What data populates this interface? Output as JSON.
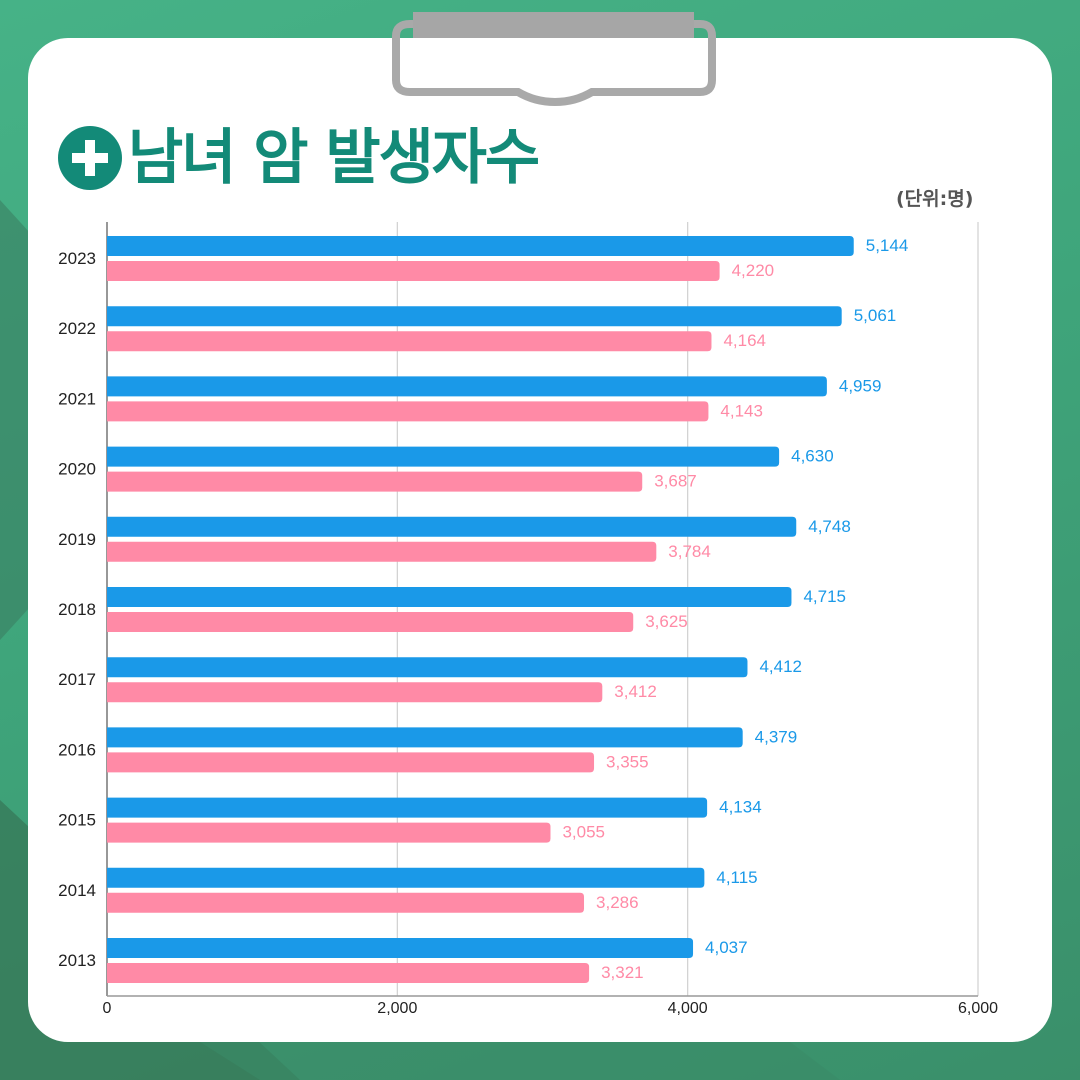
{
  "title": "남녀 암 발생자수",
  "unit": "(단위:명)",
  "colors": {
    "background": "#43ad80",
    "title": "#138a78",
    "male": "#1a99e8",
    "female": "#ff8aa6"
  },
  "icons": {
    "title_icon": "plus-circle-icon",
    "decoration": "clipboard-clip-icon"
  },
  "chart_data": {
    "type": "bar",
    "orientation": "horizontal",
    "categories": [
      "2023",
      "2022",
      "2021",
      "2020",
      "2019",
      "2018",
      "2017",
      "2016",
      "2015",
      "2014",
      "2013"
    ],
    "series": [
      {
        "color": "#1a99e8",
        "values": [
          5144,
          5061,
          4959,
          4630,
          4748,
          4715,
          4412,
          4379,
          4134,
          4115,
          4037
        ],
        "labels": [
          "5,144",
          "5,061",
          "4,959",
          "4,630",
          "4,748",
          "4,715",
          "4,412",
          "4,379",
          "4,134",
          "4,115",
          "4,037"
        ]
      },
      {
        "color": "#ff8aa6",
        "values": [
          4220,
          4164,
          4143,
          3687,
          3784,
          3625,
          3412,
          3355,
          3055,
          3286,
          3321
        ],
        "labels": [
          "4,220",
          "4,164",
          "4,143",
          "3,687",
          "3,784",
          "3,625",
          "3,412",
          "3,355",
          "3,055",
          "3,286",
          "3,321"
        ]
      }
    ],
    "xlim": [
      0,
      6000
    ],
    "xticks": [
      0,
      2000,
      4000,
      6000
    ],
    "xtick_labels": [
      "0",
      "2,000",
      "4,000",
      "6,000"
    ],
    "grid": true,
    "legend": "none"
  }
}
